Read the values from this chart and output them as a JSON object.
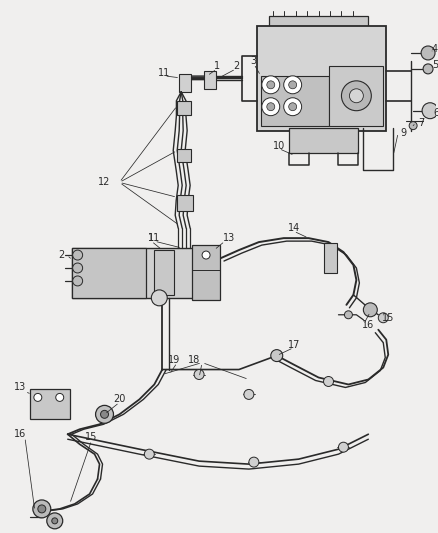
{
  "bg_color": "#f0efee",
  "line_color": "#2a2a2a",
  "label_color": "#1a1a1a",
  "figsize": [
    4.38,
    5.33
  ],
  "dpi": 100,
  "tube_lw": 1.6,
  "thin_lw": 0.8,
  "label_fs": 7
}
